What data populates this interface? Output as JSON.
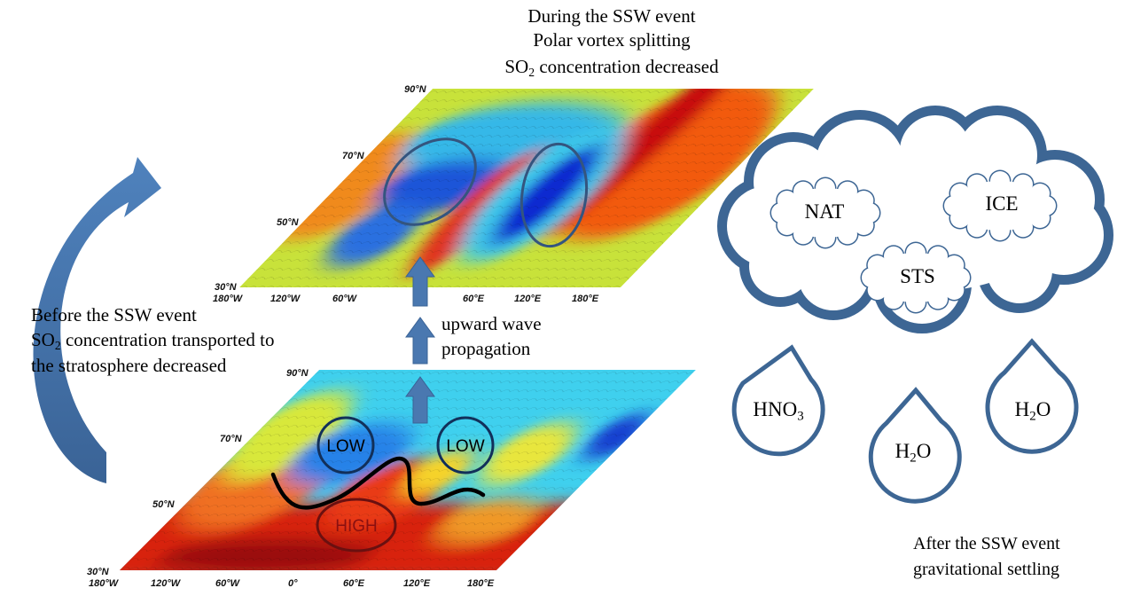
{
  "title": {
    "line1": "During the SSW event",
    "line2": "Polar vortex splitting",
    "line3": {
      "pre": "SO",
      "sub": "2",
      "post": " concentration decreased"
    }
  },
  "before": {
    "line1": "Before the SSW event",
    "line2": {
      "pre": "SO",
      "sub": "2",
      "post": " concentration transported to"
    },
    "line3": "the stratosphere decreased"
  },
  "wave": {
    "line1": "upward wave",
    "line2": "propagation"
  },
  "after": {
    "line1": "After the SSW event",
    "line2": "gravitational settling"
  },
  "top_map": {
    "lat_labels": [
      "90°N",
      "70°N",
      "50°N",
      "30°N"
    ],
    "lon_labels": [
      "180°W",
      "120°W",
      "60°W",
      "60°E",
      "120°E",
      "180°E"
    ]
  },
  "bottom_map": {
    "lat_labels": [
      "90°N",
      "70°N",
      "50°N",
      "30°N"
    ],
    "lon_labels": [
      "180°W",
      "120°W",
      "60°W",
      "0°",
      "60°E",
      "120°E",
      "180°E"
    ],
    "low1": "LOW",
    "low2": "LOW",
    "high": "HIGH"
  },
  "clouds": {
    "nat": "NAT",
    "ice": "ICE",
    "sts": "STS"
  },
  "drops": {
    "hno3": {
      "pre": "HNO",
      "sub": "3",
      "post": ""
    },
    "h2o_mid": {
      "pre": "H",
      "sub": "2",
      "post": "O"
    },
    "h2o_right": {
      "pre": "H",
      "sub": "2",
      "post": "O"
    }
  },
  "colors": {
    "accent": "#3d6694",
    "arrow": "#4a78b0"
  }
}
